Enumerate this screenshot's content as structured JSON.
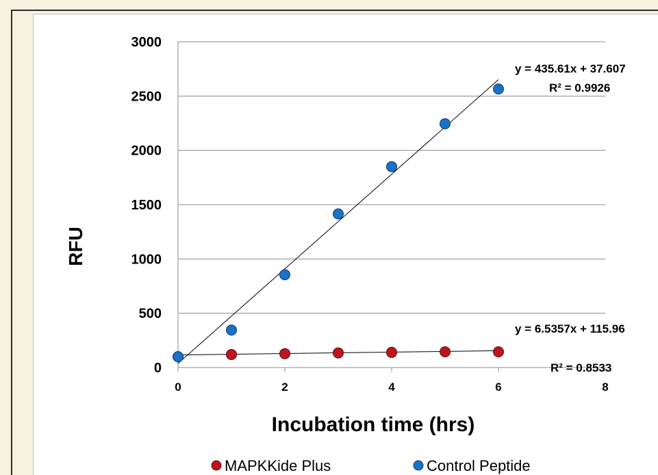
{
  "chart_data": {
    "type": "scatter",
    "title": "",
    "xlabel": "Incubation time (hrs)",
    "ylabel": "RFU",
    "xlim": [
      0,
      8
    ],
    "ylim": [
      0,
      3000
    ],
    "xticks": [
      "0",
      "2",
      "4",
      "6",
      "8"
    ],
    "yticks": [
      "0",
      "500",
      "1000",
      "1500",
      "2000",
      "2500",
      "3000"
    ],
    "grid": "horizontal",
    "legend_position": "bottom",
    "series": [
      {
        "name": "MAPKKide Plus",
        "color": "#c0141c",
        "x": [
          0,
          1,
          2,
          3,
          4,
          5,
          6
        ],
        "y": [
          100,
          120,
          128,
          135,
          140,
          145,
          145
        ],
        "trendline": {
          "equation": "y = 6.5357x + 115.96",
          "r2": "R² = 0.8533",
          "slope": 6.5357,
          "intercept": 115.96
        }
      },
      {
        "name": "Control Peptide",
        "color": "#1a72c8",
        "x": [
          0,
          1,
          2,
          3,
          4,
          5,
          6
        ],
        "y": [
          100,
          345,
          855,
          1415,
          1850,
          2245,
          2565
        ],
        "trendline": {
          "equation": "y = 435.61x + 37.607",
          "r2": "R² = 0.9926",
          "slope": 435.61,
          "intercept": 37.607
        }
      }
    ]
  }
}
